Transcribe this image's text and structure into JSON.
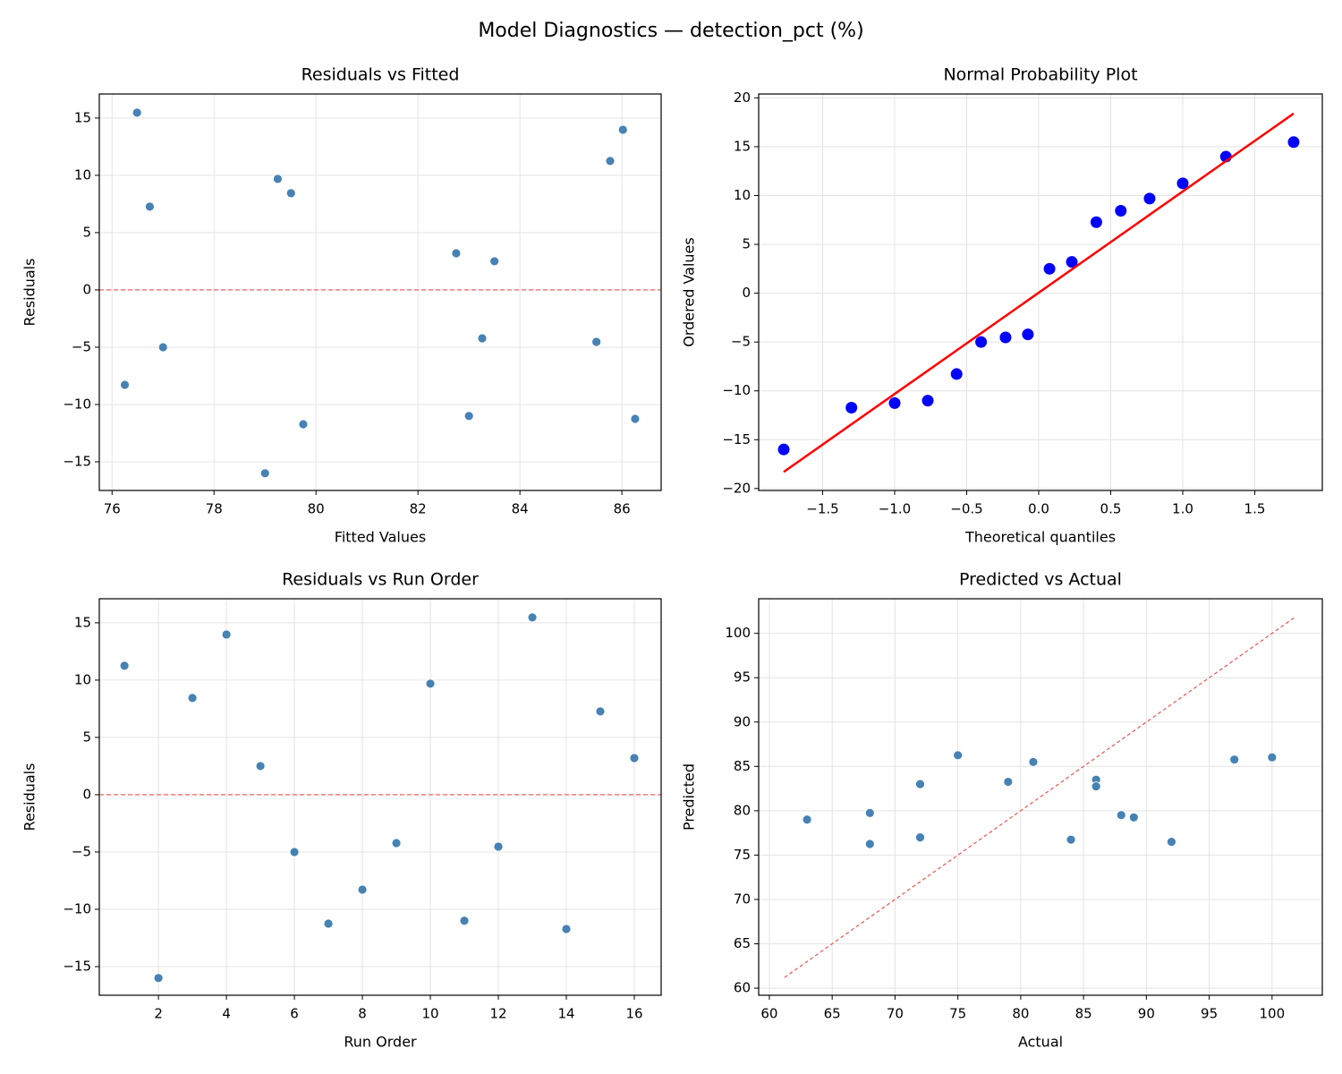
{
  "title": "Model Diagnostics — detection_pct (%)",
  "chart_data": [
    {
      "type": "scatter",
      "title": "Residuals vs Fitted",
      "xlabel": "Fitted Values",
      "ylabel": "Residuals",
      "x": [
        85.77,
        79.0,
        79.51,
        86.02,
        83.5,
        77.0,
        86.26,
        76.25,
        83.26,
        79.25,
        83.0,
        85.5,
        76.49,
        79.75,
        76.74,
        82.75
      ],
      "y": [
        11.25,
        -16.0,
        8.44,
        13.98,
        2.5,
        -5.0,
        -11.25,
        -8.28,
        -4.22,
        9.69,
        -11.0,
        -4.53,
        15.47,
        -11.72,
        7.27,
        3.2
      ],
      "color": "#4682b4",
      "hline": 0,
      "hline_color": "#e8423f",
      "xlim": [
        75.75,
        86.77
      ],
      "ylim": [
        -17.5,
        17.1
      ],
      "xticks": [
        76,
        78,
        80,
        82,
        84,
        86
      ],
      "yticks": [
        {
          "value": -15,
          "label": "−15"
        },
        {
          "value": -10,
          "label": "−10"
        },
        {
          "value": -5,
          "label": "−5"
        },
        0,
        5,
        10,
        15
      ],
      "grid": true
    },
    {
      "type": "probplot",
      "title": "Normal Probability Plot",
      "xlabel": "Theoretical quantiles",
      "ylabel": "Ordered Values",
      "x": [
        -1.77,
        -1.3,
        -1.0,
        -0.77,
        -0.57,
        -0.4,
        -0.23,
        -0.075,
        0.075,
        0.23,
        0.4,
        0.57,
        0.77,
        1.0,
        1.3,
        1.77
      ],
      "y": [
        -16.0,
        -11.72,
        -11.25,
        -11.0,
        -8.28,
        -5.0,
        -4.53,
        -4.22,
        2.5,
        3.2,
        7.27,
        8.44,
        9.69,
        11.25,
        13.98,
        15.47
      ],
      "color": "#0000ff",
      "line": {
        "x": [
          -1.77,
          1.77
        ],
        "y": [
          -18.3,
          18.4
        ],
        "color": "#ff0000"
      },
      "xlim": [
        -1.944,
        1.969
      ],
      "ylim": [
        -20.2,
        20.4
      ],
      "xticks": [
        {
          "value": -1.5,
          "label": "−1.5"
        },
        {
          "value": -1.0,
          "label": "−1.0"
        },
        {
          "value": -0.5,
          "label": "−0.5"
        },
        {
          "value": 0,
          "label": "0.0"
        },
        0.5,
        {
          "value": 1,
          "label": "1.0"
        },
        1.5
      ],
      "yticks": [
        {
          "value": -20,
          "label": "−20"
        },
        {
          "value": -15,
          "label": "−15"
        },
        {
          "value": -10,
          "label": "−10"
        },
        {
          "value": -5,
          "label": "−5"
        },
        0,
        5,
        10,
        15,
        20
      ],
      "grid": true
    },
    {
      "type": "scatter",
      "title": "Residuals vs Run Order",
      "xlabel": "Run Order",
      "ylabel": "Residuals",
      "x": [
        1,
        2,
        3,
        4,
        5,
        6,
        7,
        8,
        9,
        10,
        11,
        12,
        13,
        14,
        15,
        16
      ],
      "y": [
        11.25,
        -16.0,
        8.44,
        13.98,
        2.5,
        -5.0,
        -11.25,
        -8.28,
        -4.22,
        9.69,
        -11.0,
        -4.53,
        15.47,
        -11.72,
        7.27,
        3.2
      ],
      "color": "#4682b4",
      "hline": 0,
      "hline_color": "#e8423f",
      "xlim": [
        0.26,
        16.79
      ],
      "ylim": [
        -17.5,
        17.1
      ],
      "xticks": [
        2,
        4,
        6,
        8,
        10,
        12,
        14,
        16
      ],
      "yticks": [
        {
          "value": -15,
          "label": "−15"
        },
        {
          "value": -10,
          "label": "−10"
        },
        {
          "value": -5,
          "label": "−5"
        },
        0,
        5,
        10,
        15
      ],
      "grid": true
    },
    {
      "type": "scatter",
      "title": "Predicted vs Actual",
      "xlabel": "Actual",
      "ylabel": "Predicted",
      "x": [
        97,
        63,
        88,
        100,
        86,
        72,
        75,
        68,
        79,
        89,
        72,
        81,
        92,
        68,
        84,
        86
      ],
      "y": [
        85.77,
        79.0,
        79.51,
        86.02,
        83.5,
        77.0,
        86.26,
        76.25,
        83.26,
        79.25,
        83.0,
        85.5,
        76.49,
        79.75,
        76.74,
        82.75
      ],
      "color": "#4682b4",
      "dashed_line": {
        "x": [
          61.2,
          101.8
        ],
        "y": [
          61.2,
          101.8
        ],
        "color": "#e8423f"
      },
      "xlim": [
        59.15,
        104.0
      ],
      "ylim": [
        59.2,
        103.9
      ],
      "xticks": [
        60,
        65,
        70,
        75,
        80,
        85,
        90,
        95,
        100
      ],
      "yticks": [
        60,
        65,
        70,
        75,
        80,
        85,
        90,
        95,
        100
      ],
      "grid": true
    }
  ]
}
